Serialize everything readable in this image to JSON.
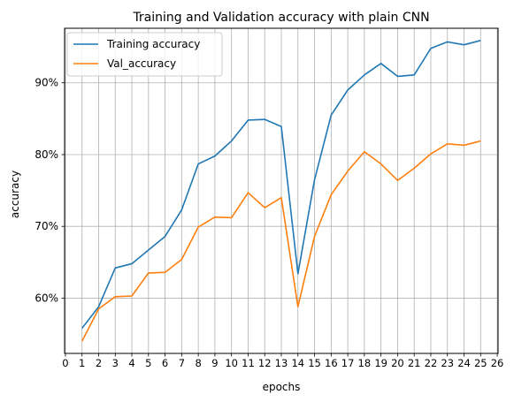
{
  "chart_data": {
    "type": "line",
    "title": "Training and Validation accuracy with plain CNN",
    "xlabel": "epochs",
    "ylabel": "accuracy",
    "xlim": [
      -0.05,
      26.05
    ],
    "ylim": [
      52.3,
      97.6
    ],
    "x_ticks": [
      0,
      1,
      2,
      3,
      4,
      5,
      6,
      7,
      8,
      9,
      10,
      11,
      12,
      13,
      14,
      15,
      16,
      17,
      18,
      19,
      20,
      21,
      22,
      23,
      24,
      25,
      26
    ],
    "y_ticks": [
      60,
      70,
      80,
      90
    ],
    "y_tick_labels": [
      "60%",
      "70%",
      "80%",
      "90%"
    ],
    "grid": true,
    "legend_position": "upper-left",
    "x": [
      1,
      2,
      3,
      4,
      5,
      6,
      7,
      8,
      9,
      10,
      11,
      12,
      13,
      14,
      15,
      16,
      17,
      18,
      19,
      20,
      21,
      22,
      23,
      24,
      25
    ],
    "series": [
      {
        "name": "Training accuracy",
        "color": "#1f77b4",
        "values": [
          55.8,
          58.8,
          64.2,
          64.8,
          66.7,
          68.6,
          72.3,
          78.7,
          79.8,
          81.9,
          84.8,
          84.9,
          83.9,
          63.4,
          76.5,
          85.5,
          89.0,
          91.1,
          92.7,
          90.9,
          91.1,
          94.8,
          95.7,
          95.3,
          95.9
        ]
      },
      {
        "name": "Val_accuracy",
        "color": "#ff7f0e",
        "values": [
          54.0,
          58.5,
          60.2,
          60.3,
          63.5,
          63.6,
          65.4,
          69.9,
          71.3,
          71.2,
          74.7,
          72.6,
          74.0,
          58.8,
          68.6,
          74.4,
          77.7,
          80.4,
          78.7,
          76.4,
          78.1,
          80.1,
          81.5,
          81.3,
          81.9
        ]
      }
    ]
  }
}
